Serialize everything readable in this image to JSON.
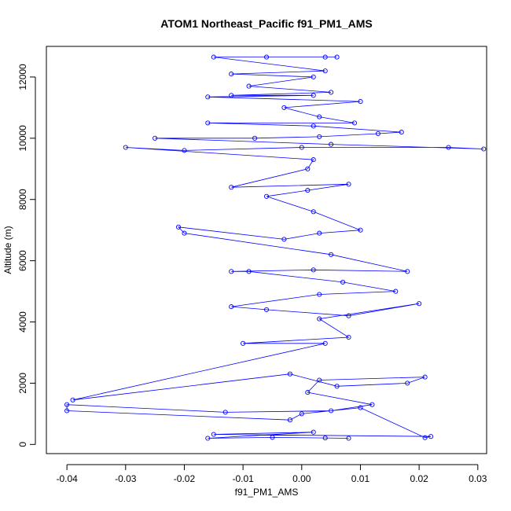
{
  "chart_data": {
    "type": "scatter",
    "title": "ATOM1 Northeast_Pacific f91_PM1_AMS",
    "xlabel": "f91_PM1_AMS",
    "ylabel": "Altitude (m)",
    "xlim": [
      -0.0435,
      0.0315
    ],
    "ylim": [
      -300,
      13000
    ],
    "x_ticks": [
      -0.04,
      -0.03,
      -0.02,
      -0.01,
      0.0,
      0.01,
      0.02,
      0.03
    ],
    "x_tick_labels": [
      "-0.04",
      "-0.03",
      "-0.02",
      "-0.01",
      "0.00",
      "0.01",
      "0.02",
      "0.03"
    ],
    "y_ticks": [
      0,
      2000,
      4000,
      6000,
      8000,
      10000,
      12000
    ],
    "y_tick_labels": [
      "0",
      "2000",
      "4000",
      "6000",
      "8000",
      "10000",
      "12000"
    ],
    "grid": false,
    "series": [
      {
        "name": "f91_PM1_AMS",
        "color": "#0000ff",
        "marker": "open-circle",
        "connected": true,
        "points": [
          [
            0.008,
            200
          ],
          [
            0.004,
            210
          ],
          [
            -0.005,
            230
          ],
          [
            -0.016,
            200
          ],
          [
            0.002,
            400
          ],
          [
            -0.015,
            330
          ],
          [
            0.022,
            260
          ],
          [
            0.021,
            220
          ],
          [
            0.01,
            1200
          ],
          [
            0.0,
            1000
          ],
          [
            -0.002,
            800
          ],
          [
            -0.04,
            1100
          ],
          [
            -0.04,
            1300
          ],
          [
            -0.013,
            1050
          ],
          [
            0.005,
            1100
          ],
          [
            0.012,
            1300
          ],
          [
            0.001,
            1700
          ],
          [
            0.003,
            2100
          ],
          [
            0.021,
            2200
          ],
          [
            0.018,
            2000
          ],
          [
            0.006,
            1900
          ],
          [
            -0.002,
            2300
          ],
          [
            -0.039,
            1450
          ],
          [
            0.004,
            3300
          ],
          [
            -0.01,
            3300
          ],
          [
            0.008,
            3500
          ],
          [
            0.003,
            4100
          ],
          [
            0.02,
            4600
          ],
          [
            0.008,
            4200
          ],
          [
            -0.006,
            4400
          ],
          [
            -0.012,
            4500
          ],
          [
            0.003,
            4900
          ],
          [
            0.016,
            5000
          ],
          [
            0.007,
            5300
          ],
          [
            -0.009,
            5650
          ],
          [
            -0.012,
            5650
          ],
          [
            0.002,
            5700
          ],
          [
            0.018,
            5650
          ],
          [
            0.005,
            6200
          ],
          [
            -0.02,
            6900
          ],
          [
            -0.021,
            7100
          ],
          [
            -0.003,
            6700
          ],
          [
            0.003,
            6900
          ],
          [
            0.01,
            7000
          ],
          [
            0.002,
            7600
          ],
          [
            -0.006,
            8100
          ],
          [
            0.001,
            8300
          ],
          [
            0.008,
            8500
          ],
          [
            -0.012,
            8400
          ],
          [
            0.001,
            9000
          ],
          [
            0.002,
            9300
          ],
          [
            -0.03,
            9700
          ],
          [
            -0.02,
            9600
          ],
          [
            0.0,
            9700
          ],
          [
            0.025,
            9700
          ],
          [
            0.031,
            9650
          ],
          [
            0.005,
            9800
          ],
          [
            -0.025,
            10000
          ],
          [
            -0.008,
            10000
          ],
          [
            0.003,
            10050
          ],
          [
            0.013,
            10150
          ],
          [
            0.017,
            10200
          ],
          [
            0.002,
            10400
          ],
          [
            -0.016,
            10500
          ],
          [
            0.009,
            10500
          ],
          [
            0.003,
            10700
          ],
          [
            -0.003,
            11000
          ],
          [
            0.01,
            11200
          ],
          [
            -0.016,
            11350
          ],
          [
            0.002,
            11400
          ],
          [
            -0.012,
            11400
          ],
          [
            0.005,
            11500
          ],
          [
            -0.009,
            11700
          ],
          [
            0.002,
            12000
          ],
          [
            -0.012,
            12100
          ],
          [
            0.004,
            12200
          ],
          [
            -0.015,
            12650
          ],
          [
            -0.006,
            12650
          ],
          [
            0.004,
            12650
          ],
          [
            0.006,
            12650
          ]
        ]
      }
    ]
  }
}
